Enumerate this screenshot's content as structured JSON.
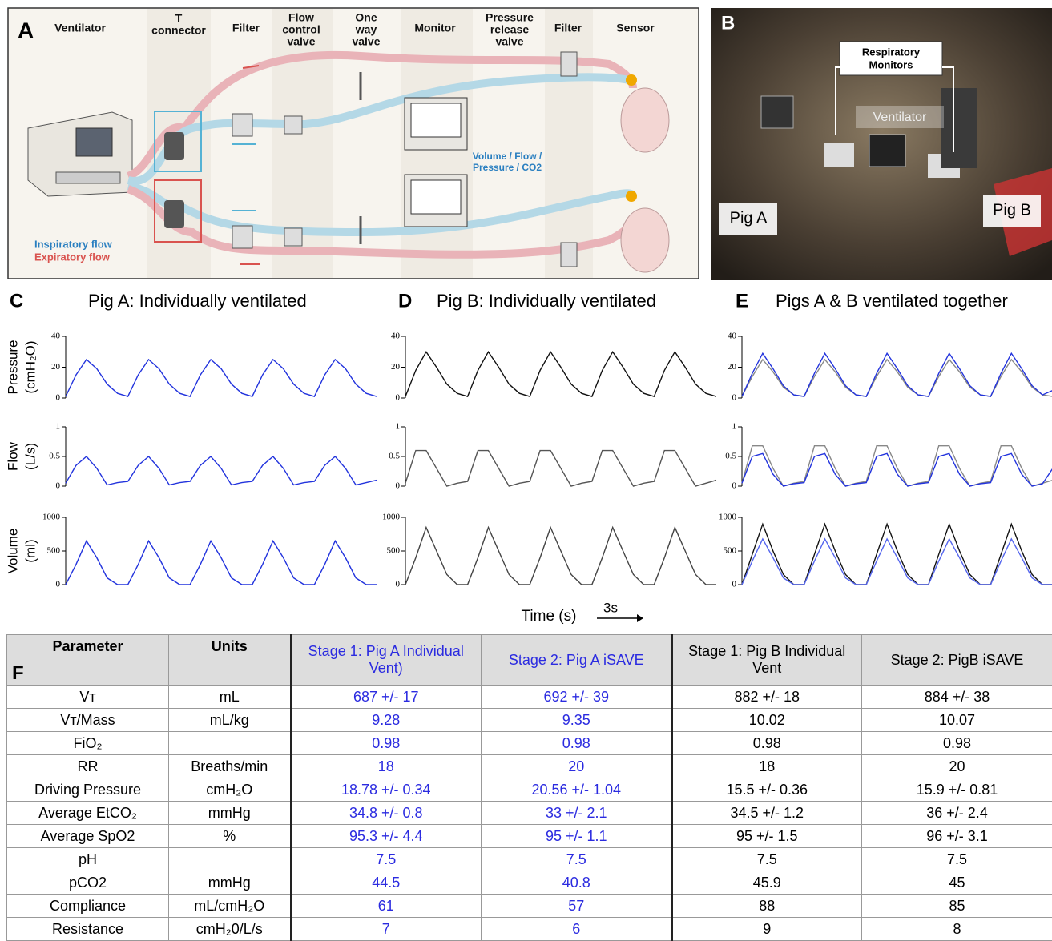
{
  "panel_a": {
    "letter": "A",
    "columns": [
      [
        "Ventilator"
      ],
      [
        "T",
        "connector"
      ],
      [
        "Filter"
      ],
      [
        "Flow",
        "control",
        "valve"
      ],
      [
        "One",
        "way",
        "valve"
      ],
      [
        "Monitor"
      ],
      [
        "Pressure",
        "release",
        "valve"
      ],
      [
        "Filter"
      ],
      [
        "Sensor"
      ]
    ],
    "monitor_label": [
      "Volume / Flow /",
      "Pressure / CO2"
    ],
    "legend": [
      "Inspiratory flow",
      "Expiratory flow"
    ]
  },
  "panel_b": {
    "letter": "B",
    "monitors": [
      "Respiratory",
      "Monitors"
    ],
    "ventilator": "Ventilator",
    "pig_a": "Pig A",
    "pig_b": "Pig B"
  },
  "panels": [
    {
      "letter": "C",
      "title": "Pig A: Individually ventilated"
    },
    {
      "letter": "D",
      "title": "Pig B: Individually ventilated"
    },
    {
      "letter": "E",
      "title": "Pigs A & B ventilated together"
    }
  ],
  "ylabels": [
    [
      "Pressure",
      "(cmH₂O)"
    ],
    [
      "Flow",
      "(L/s)"
    ],
    [
      "Volume",
      "(ml)"
    ]
  ],
  "time_label": "Time (s)",
  "scale_bar": "3s",
  "chart_data": [
    {
      "type": "line",
      "ylim": [
        0,
        40
      ],
      "yticks": [
        0,
        20,
        40
      ],
      "series": [
        {
          "color": "#2233dd",
          "values": [
            1,
            15,
            25,
            19,
            9,
            3,
            1,
            15,
            25,
            19,
            9,
            3,
            1,
            15,
            25,
            19,
            9,
            3,
            1,
            15,
            25,
            19,
            9,
            3,
            1,
            15,
            25,
            19,
            9,
            3,
            1
          ]
        }
      ]
    },
    {
      "type": "line",
      "ylim": [
        0,
        1
      ],
      "yticks": [
        0,
        0.5,
        1
      ],
      "series": [
        {
          "color": "#2233dd",
          "values": [
            0.05,
            0.35,
            0.5,
            0.3,
            0.02,
            0.06,
            0.08,
            0.35,
            0.5,
            0.3,
            0.02,
            0.06,
            0.08,
            0.35,
            0.5,
            0.3,
            0.02,
            0.06,
            0.08,
            0.35,
            0.5,
            0.3,
            0.02,
            0.06,
            0.08,
            0.35,
            0.5,
            0.3,
            0.02,
            0.06,
            0.1
          ]
        }
      ]
    },
    {
      "type": "line",
      "ylim": [
        0,
        1000
      ],
      "yticks": [
        0,
        500,
        1000
      ],
      "series": [
        {
          "color": "#2233dd",
          "values": [
            0,
            300,
            650,
            400,
            100,
            0,
            0,
            300,
            650,
            400,
            100,
            0,
            0,
            300,
            650,
            400,
            100,
            0,
            0,
            300,
            650,
            400,
            100,
            0,
            0,
            300,
            650,
            400,
            100,
            0,
            0
          ]
        }
      ]
    },
    {
      "type": "line",
      "ylim": [
        0,
        40
      ],
      "yticks": [
        0,
        20,
        40
      ],
      "series": [
        {
          "color": "#111111",
          "values": [
            1,
            18,
            30,
            20,
            9,
            3,
            1,
            18,
            30,
            20,
            9,
            3,
            1,
            18,
            30,
            20,
            9,
            3,
            1,
            18,
            30,
            20,
            9,
            3,
            1,
            18,
            30,
            20,
            9,
            3,
            1
          ]
        }
      ]
    },
    {
      "type": "line",
      "ylim": [
        0,
        1
      ],
      "yticks": [
        0,
        0.5,
        1
      ],
      "series": [
        {
          "color": "#555555",
          "values": [
            0.05,
            0.6,
            0.6,
            0.3,
            0,
            0.05,
            0.08,
            0.6,
            0.6,
            0.3,
            0,
            0.05,
            0.08,
            0.6,
            0.6,
            0.3,
            0,
            0.05,
            0.08,
            0.6,
            0.6,
            0.3,
            0,
            0.05,
            0.08,
            0.6,
            0.6,
            0.3,
            0,
            0.05,
            0.1
          ]
        }
      ]
    },
    {
      "type": "line",
      "ylim": [
        0,
        1000
      ],
      "yticks": [
        0,
        500,
        1000
      ],
      "series": [
        {
          "color": "#444444",
          "values": [
            0,
            400,
            850,
            500,
            150,
            0,
            0,
            400,
            850,
            500,
            150,
            0,
            0,
            400,
            850,
            500,
            150,
            0,
            0,
            400,
            850,
            500,
            150,
            0,
            0,
            400,
            850,
            500,
            150,
            0,
            0
          ]
        }
      ]
    },
    {
      "type": "line",
      "ylim": [
        0,
        40
      ],
      "yticks": [
        0,
        20,
        40
      ],
      "series": [
        {
          "color": "#888888",
          "values": [
            1,
            14,
            25,
            17,
            7,
            2,
            1,
            14,
            25,
            17,
            7,
            2,
            1,
            14,
            25,
            17,
            7,
            2,
            1,
            14,
            25,
            17,
            7,
            2,
            1,
            14,
            25,
            17,
            7,
            2,
            1
          ]
        },
        {
          "color": "#2233dd",
          "values": [
            1,
            16,
            29,
            19,
            8,
            2,
            1,
            16,
            29,
            19,
            8,
            2,
            1,
            16,
            29,
            19,
            8,
            2,
            1,
            16,
            29,
            19,
            8,
            2,
            1,
            16,
            29,
            19,
            8,
            2,
            5
          ]
        }
      ]
    },
    {
      "type": "line",
      "ylim": [
        0,
        1
      ],
      "yticks": [
        0,
        0.5,
        1
      ],
      "series": [
        {
          "color": "#888888",
          "values": [
            0.05,
            0.68,
            0.68,
            0.3,
            0,
            0.05,
            0.08,
            0.68,
            0.68,
            0.3,
            0,
            0.05,
            0.08,
            0.68,
            0.68,
            0.3,
            0,
            0.05,
            0.08,
            0.68,
            0.68,
            0.3,
            0,
            0.05,
            0.08,
            0.68,
            0.68,
            0.3,
            0,
            0.05,
            0.1
          ]
        },
        {
          "color": "#2233dd",
          "values": [
            0.05,
            0.5,
            0.55,
            0.2,
            0,
            0.04,
            0.06,
            0.5,
            0.55,
            0.2,
            0,
            0.04,
            0.06,
            0.5,
            0.55,
            0.2,
            0,
            0.04,
            0.06,
            0.5,
            0.55,
            0.2,
            0,
            0.04,
            0.06,
            0.5,
            0.55,
            0.2,
            0,
            0.04,
            0.3
          ]
        }
      ]
    },
    {
      "type": "line",
      "ylim": [
        0,
        1000
      ],
      "yticks": [
        0,
        500,
        1000
      ],
      "series": [
        {
          "color": "#111111",
          "values": [
            0,
            450,
            900,
            500,
            150,
            0,
            0,
            450,
            900,
            500,
            150,
            0,
            0,
            450,
            900,
            500,
            150,
            0,
            0,
            450,
            900,
            500,
            150,
            0,
            0,
            450,
            900,
            500,
            150,
            0,
            0
          ]
        },
        {
          "color": "#5566ee",
          "values": [
            0,
            350,
            680,
            400,
            100,
            0,
            0,
            350,
            680,
            400,
            100,
            0,
            0,
            350,
            680,
            400,
            100,
            0,
            0,
            350,
            680,
            400,
            100,
            0,
            0,
            350,
            680,
            400,
            100,
            0,
            0
          ]
        }
      ]
    }
  ],
  "table": {
    "letter": "F",
    "header": [
      "Parameter",
      "Units",
      "Stage 1: Pig A Individual Vent)",
      "Stage 2: Pig A iSAVE",
      "Stage 1: Pig B Individual Vent",
      "Stage 2: PigB iSAVE"
    ],
    "rows": [
      [
        "Vᴛ",
        "mL",
        "687 +/- 17",
        "692 +/- 39",
        "882 +/- 18",
        "884 +/- 38"
      ],
      [
        "Vᴛ/Mass",
        "mL/kg",
        9.28,
        9.35,
        10.02,
        10.07
      ],
      [
        "FiO₂",
        null,
        0.98,
        0.98,
        0.98,
        0.98
      ],
      [
        "RR",
        "Breaths/min",
        18,
        20,
        18,
        20
      ],
      [
        "Driving Pressure",
        "cmH₂O",
        "18.78 +/- 0.34",
        "20.56 +/- 1.04",
        "15.5 +/- 0.36",
        "15.9 +/- 0.81"
      ],
      [
        "Average EtCO₂",
        "mmHg",
        "34.8 +/- 0.8",
        "33 +/- 2.1",
        "34.5 +/- 1.2",
        "36 +/- 2.4"
      ],
      [
        "Average SpO2",
        "%",
        "95.3 +/- 4.4",
        "95 +/- 1.1",
        "95 +/- 1.5",
        "96 +/- 3.1"
      ],
      [
        "pH",
        null,
        7.5,
        7.5,
        7.5,
        7.5
      ],
      [
        "pCO2",
        "mmHg",
        44.5,
        40.8,
        45.9,
        45
      ],
      [
        "Compliance",
        "mL/cmH₂O",
        61,
        57,
        88,
        85
      ],
      [
        "Resistance",
        "cmH₂0/L/s",
        7,
        6,
        9,
        8
      ]
    ]
  }
}
